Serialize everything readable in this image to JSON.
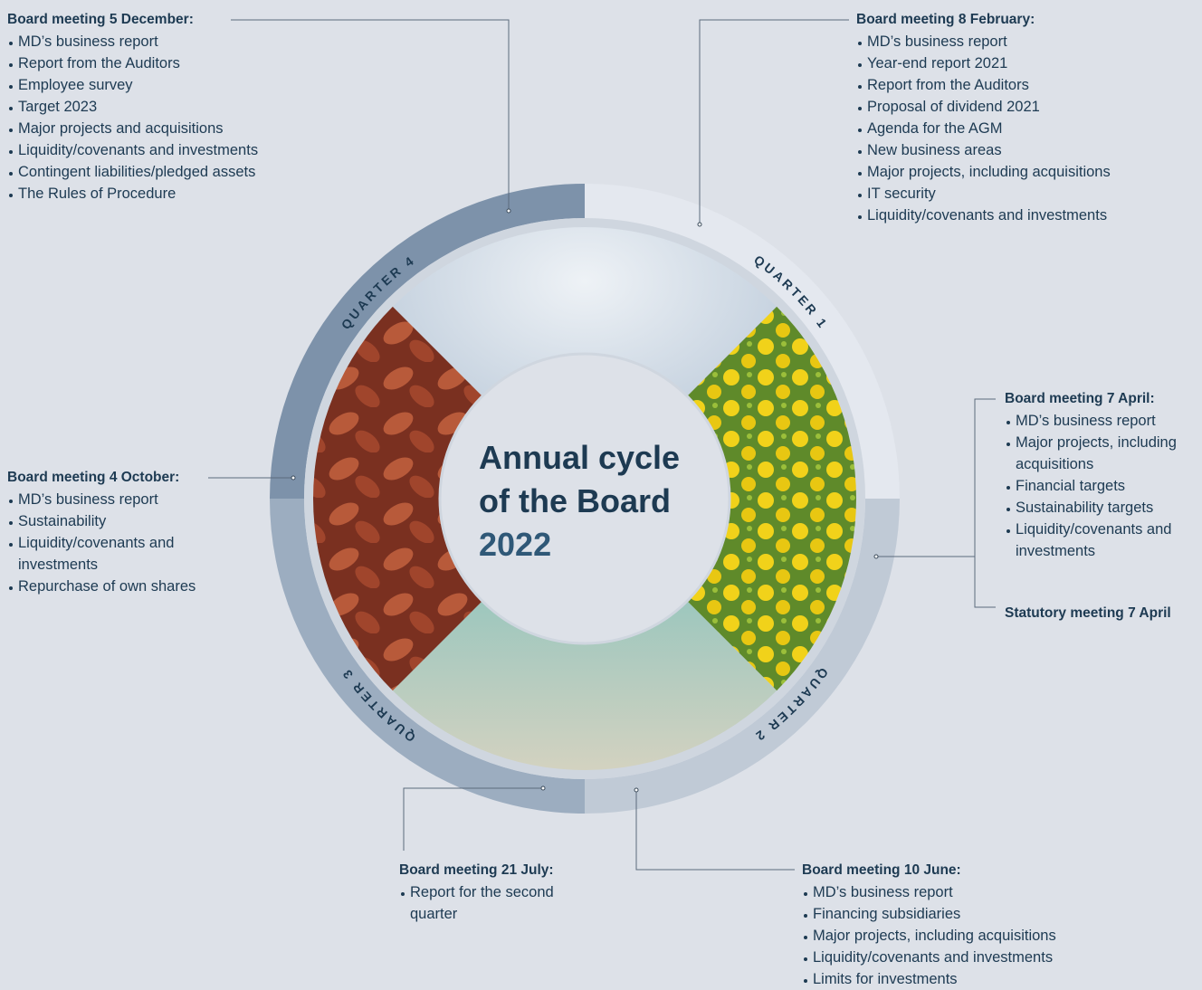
{
  "title": {
    "line1": "Annual cycle",
    "line2": "of the Board",
    "year": "2022"
  },
  "quarters": [
    "QUARTER 1",
    "QUARTER 2",
    "QUARTER 3",
    "QUARTER 4"
  ],
  "meetings": [
    {
      "heading": "Board meeting 5 December:",
      "items": [
        "MD’s business report",
        "Report from the Auditors",
        "Employee survey",
        "Target 2023",
        "Major projects and acquisitions",
        "Liquidity/covenants and investments",
        "Contingent liabilities/pledged assets",
        "The Rules of Procedure"
      ]
    },
    {
      "heading": "Board meeting 8 February:",
      "items": [
        "MD’s business report",
        "Year-end report 2021",
        "Report from the Auditors",
        "Proposal of dividend 2021",
        "Agenda for the AGM",
        "New business areas",
        "Major projects, including acquisitions",
        "IT security",
        "Liquidity/covenants and investments"
      ]
    },
    {
      "heading": "Board meeting 7 April:",
      "items": [
        "MD’s business report",
        "Major projects, including acquisitions",
        "Financial targets",
        "Sustainability targets",
        "Liquidity/covenants and investments"
      ]
    },
    {
      "heading": "Board meeting 4 October:",
      "items": [
        "MD’s business report",
        "Sustainability",
        "Liquidity/covenants and investments",
        "Repurchase of own shares"
      ]
    },
    {
      "heading": "Board meeting 21 July:",
      "items": [
        "Report for the second quarter"
      ]
    },
    {
      "heading": "Board meeting 10 June:",
      "items": [
        "MD’s business report",
        "Financing subsidiaries",
        "Major projects, including acquisitions",
        "Liquidity/covenants and investments",
        "Limits for investments"
      ]
    }
  ],
  "statutory": "Statutory meeting 7 April"
}
